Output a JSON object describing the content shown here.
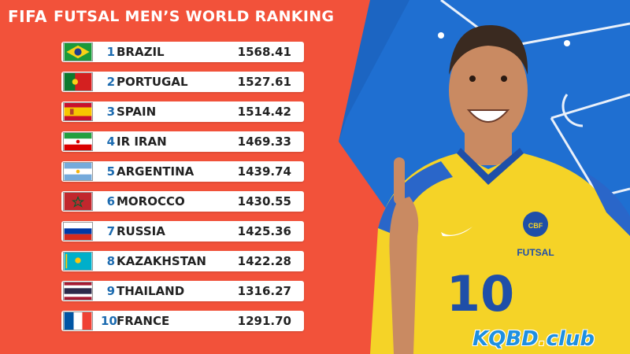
{
  "header": {
    "fifa": "FIFA",
    "title": "FUTSAL MEN’S WORLD RANKING"
  },
  "rankings": [
    {
      "rank": "1",
      "country": "BRAZIL",
      "points": "1568.41",
      "flag": "brazil-flag"
    },
    {
      "rank": "2",
      "country": "PORTUGAL",
      "points": "1527.61",
      "flag": "portugal-flag"
    },
    {
      "rank": "3",
      "country": "SPAIN",
      "points": "1514.42",
      "flag": "spain-flag"
    },
    {
      "rank": "4",
      "country": "IR IRAN",
      "points": "1469.33",
      "flag": "iran-flag"
    },
    {
      "rank": "5",
      "country": "ARGENTINA",
      "points": "1439.74",
      "flag": "argentina-flag"
    },
    {
      "rank": "6",
      "country": "MOROCCO",
      "points": "1430.55",
      "flag": "morocco-flag"
    },
    {
      "rank": "7",
      "country": "RUSSIA",
      "points": "1425.36",
      "flag": "russia-flag"
    },
    {
      "rank": "8",
      "country": "KAZAKHSTAN",
      "points": "1422.28",
      "flag": "kazakhstan-flag"
    },
    {
      "rank": "9",
      "country": "THAILAND",
      "points": "1316.27",
      "flag": "thailand-flag"
    },
    {
      "rank": "10",
      "country": "FRANCE",
      "points": "1291.70",
      "flag": "france-flag"
    }
  ],
  "player": {
    "shirt_number": "10",
    "shirt_text": "FUTSAL",
    "crest_text": "CBF"
  },
  "watermark": {
    "main": "KQBD",
    "dot": ".",
    "suffix": "club"
  },
  "colors": {
    "background": "#f2523a",
    "panel_blue": "#1f6fd1",
    "rank_blue": "#1c6bb0",
    "shirt_yellow": "#f5d327"
  }
}
